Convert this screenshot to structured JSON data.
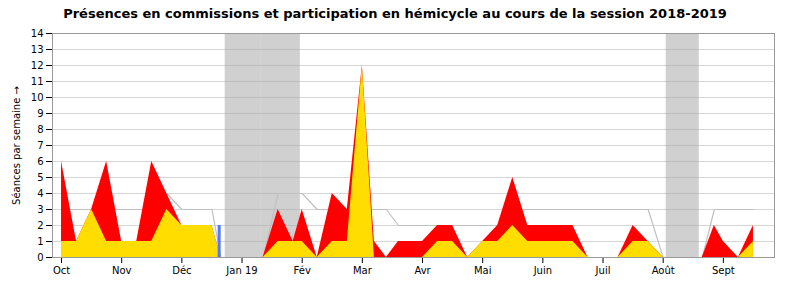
{
  "chart_data": {
    "type": "area",
    "title": "Présences en commissions et participation en hémicycle au cours de la session 2018-2019",
    "ylabel": "Séances par semaine",
    "x": [
      0.0,
      0.25,
      0.5,
      0.75,
      1.0,
      1.25,
      1.5,
      1.75,
      2.0,
      2.25,
      2.5,
      2.65,
      3.35,
      3.6,
      3.85,
      4.0,
      4.25,
      4.5,
      4.75,
      5.0,
      5.2,
      5.4,
      5.6,
      5.8,
      6.0,
      6.25,
      6.5,
      6.75,
      7.0,
      7.25,
      7.5,
      7.75,
      8.0,
      8.25,
      8.5,
      8.75,
      9.0,
      9.25,
      9.5,
      9.75,
      10.0,
      10.65,
      10.85,
      11.0,
      11.25,
      11.5
    ],
    "series": [
      {
        "type": "line",
        "color": "#c0c0c0",
        "values": [
          3,
          3,
          3,
          3,
          3,
          3,
          3,
          4,
          3,
          3,
          3,
          0,
          0,
          4,
          4,
          4,
          3,
          3,
          3,
          3,
          3,
          3,
          2,
          2,
          2,
          2,
          2,
          2,
          2,
          2,
          3,
          3,
          3,
          3,
          3,
          3,
          3,
          3,
          3,
          3,
          0,
          0,
          3,
          3,
          3,
          3
        ]
      },
      {
        "type": "area",
        "color": "#ff0000",
        "values": [
          6,
          1,
          3,
          6,
          1,
          1,
          6,
          4,
          2,
          2,
          2,
          0,
          0,
          3,
          1,
          3,
          0,
          4,
          3,
          12,
          1,
          0,
          1,
          1,
          1,
          2,
          2,
          0,
          1,
          2,
          5,
          2,
          2,
          2,
          2,
          0,
          0,
          0,
          2,
          1,
          0,
          0,
          2,
          1,
          0,
          2
        ]
      },
      {
        "type": "area",
        "color": "#ffdd00",
        "values": [
          1,
          1,
          3,
          1,
          1,
          1,
          1,
          3,
          2,
          2,
          2,
          0,
          0,
          1,
          1,
          1,
          0,
          1,
          1,
          12,
          0,
          0,
          0,
          0,
          0,
          1,
          1,
          0,
          1,
          1,
          2,
          1,
          1,
          1,
          1,
          0,
          0,
          0,
          1,
          1,
          0,
          0,
          0,
          0,
          0,
          1
        ]
      },
      {
        "type": "bar",
        "color": "#5577ff",
        "x": [
          2.62
        ],
        "values": [
          2.0
        ]
      }
    ],
    "spans": {
      "color": "#aaaaaa",
      "ranges": [
        [
          2.72,
          3.32
        ],
        [
          3.32,
          3.97
        ],
        [
          10.05,
          10.6
        ]
      ]
    },
    "xlim": [
      -0.15,
      11.85
    ],
    "xticks": [
      {
        "value": 0,
        "label": "Oct"
      },
      {
        "value": 1,
        "label": "Nov"
      },
      {
        "value": 2,
        "label": "Déc"
      },
      {
        "value": 3,
        "label": "Jan 19"
      },
      {
        "value": 4,
        "label": "Fév"
      },
      {
        "value": 5,
        "label": "Mar"
      },
      {
        "value": 6,
        "label": "Avr"
      },
      {
        "value": 7,
        "label": "Mai"
      },
      {
        "value": 8,
        "label": "Juin"
      },
      {
        "value": 9,
        "label": "Juil"
      },
      {
        "value": 10,
        "label": "Août"
      },
      {
        "value": 11,
        "label": "Sept"
      }
    ],
    "ylim": [
      0,
      14
    ],
    "yticks": [
      0,
      1,
      2,
      3,
      4,
      5,
      6,
      7,
      8,
      9,
      10,
      11,
      12,
      13,
      14
    ],
    "grid": true
  }
}
